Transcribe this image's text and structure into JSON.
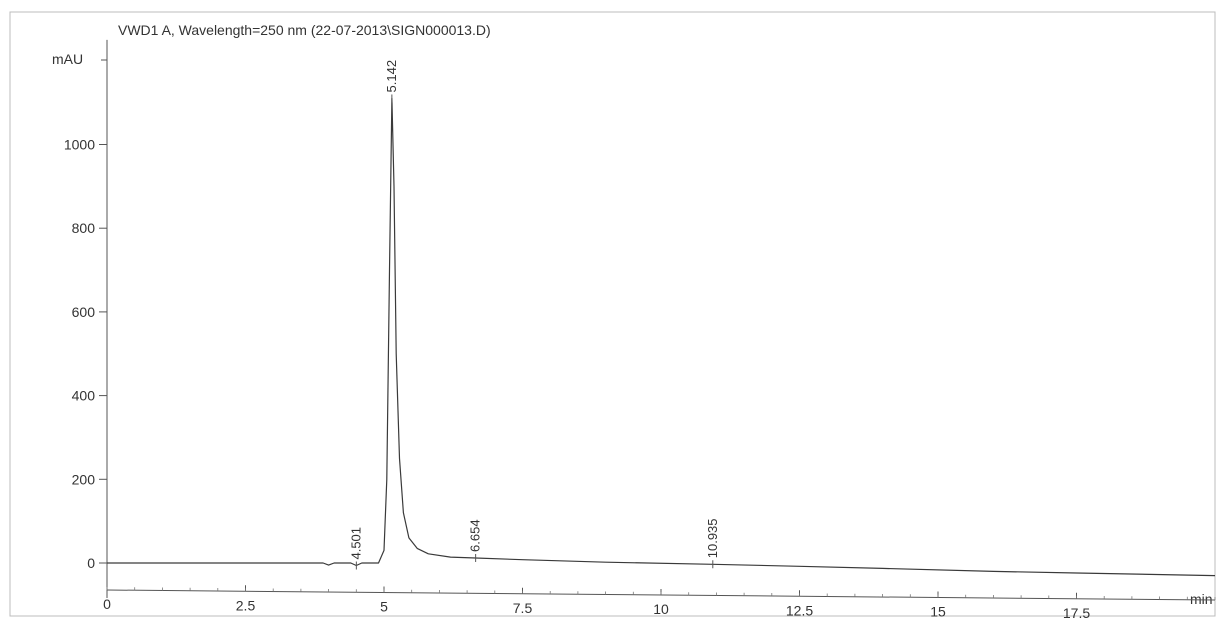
{
  "chart_data": {
    "type": "line",
    "title": "VWD1 A, Wavelength=250 nm (22-07-2013\\SIGN000013.D)",
    "ylabel": "mAU",
    "xlabel": "min",
    "xlim": [
      0,
      20
    ],
    "ylim": [
      -70,
      1250
    ],
    "x_ticks": [
      0,
      2.5,
      5,
      7.5,
      10,
      12.5,
      15,
      17.5
    ],
    "x_tick_labels": [
      "0",
      "2.5",
      "5",
      "7.5",
      "10",
      "12.5",
      "15",
      "17.5"
    ],
    "y_ticks": [
      0,
      200,
      400,
      600,
      800,
      1000
    ],
    "y_tick_labels": [
      "0",
      "200",
      "400",
      "600",
      "800",
      "1000"
    ],
    "grid": false,
    "series": [
      {
        "x": [
          0,
          3.9,
          4.0,
          4.1,
          4.4,
          4.5,
          4.6,
          4.9,
          5.0,
          5.05,
          5.1,
          5.142,
          5.18,
          5.22,
          5.28,
          5.35,
          5.45,
          5.6,
          5.8,
          6.2,
          6.654,
          7.5,
          9.0,
          10.935,
          12.5,
          14.0,
          16.0,
          17.5,
          20.0
        ],
        "y": [
          0,
          0,
          -5,
          0,
          0,
          -6,
          0,
          0,
          30,
          200,
          700,
          1110,
          900,
          500,
          250,
          120,
          60,
          35,
          22,
          14,
          12,
          8,
          2,
          -3,
          -8,
          -13,
          -20,
          -24,
          -30
        ]
      }
    ],
    "peaks": [
      {
        "rt": "4.501",
        "x": 4.501,
        "y": -6
      },
      {
        "rt": "5.142",
        "x": 5.142,
        "y": 1110
      },
      {
        "rt": "6.654",
        "x": 6.654,
        "y": 12
      },
      {
        "rt": "10.935",
        "x": 10.935,
        "y": -3
      }
    ]
  }
}
